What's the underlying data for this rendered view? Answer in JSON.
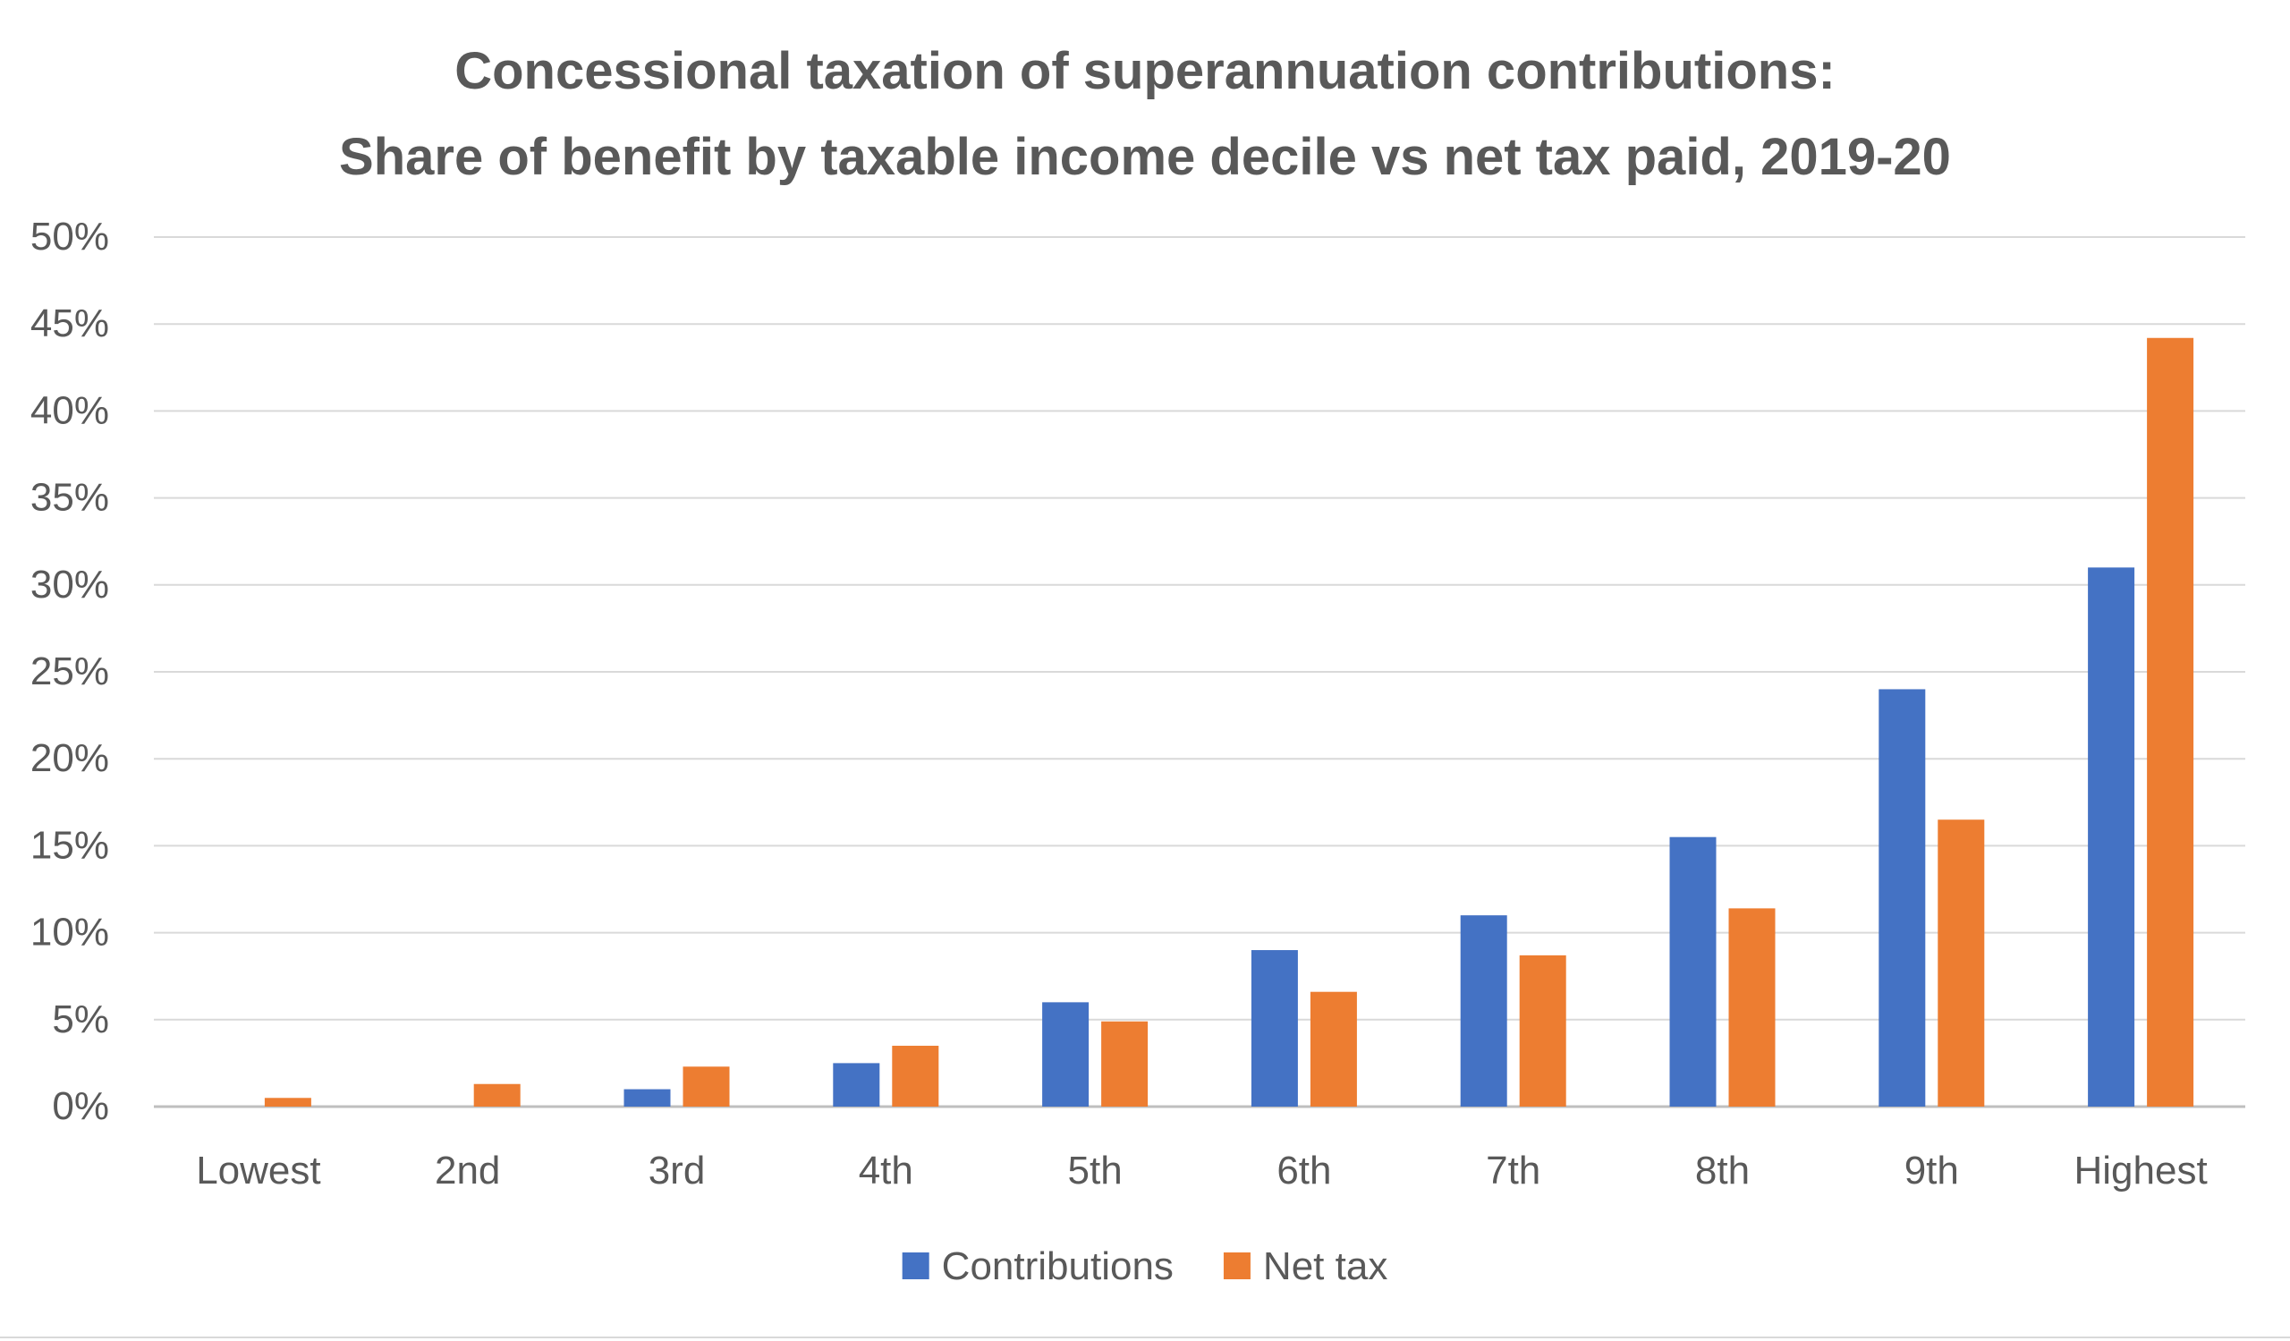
{
  "chart_data": {
    "type": "bar",
    "title": "Concessional taxation of superannuation contributions:",
    "subtitle": "Share of benefit by taxable income decile vs net tax paid, 2019-20",
    "xlabel": "",
    "ylabel": "",
    "categories": [
      "Lowest",
      "2nd",
      "3rd",
      "4th",
      "5th",
      "6th",
      "7th",
      "8th",
      "9th",
      "Highest"
    ],
    "series": [
      {
        "name": "Contributions",
        "color": "#4472c4",
        "values": [
          0,
          0,
          1.0,
          2.5,
          6.0,
          9.0,
          11.0,
          15.5,
          24.0,
          31.0
        ]
      },
      {
        "name": "Net tax",
        "color": "#ed7d31",
        "values": [
          0.5,
          1.3,
          2.3,
          3.5,
          4.9,
          6.6,
          8.7,
          11.4,
          16.5,
          44.2
        ]
      }
    ],
    "ylim": [
      0,
      50
    ],
    "yticks": [
      "0%",
      "5%",
      "10%",
      "15%",
      "20%",
      "25%",
      "30%",
      "35%",
      "40%",
      "45%",
      "50%"
    ],
    "grid": true,
    "legend_position": "bottom"
  }
}
